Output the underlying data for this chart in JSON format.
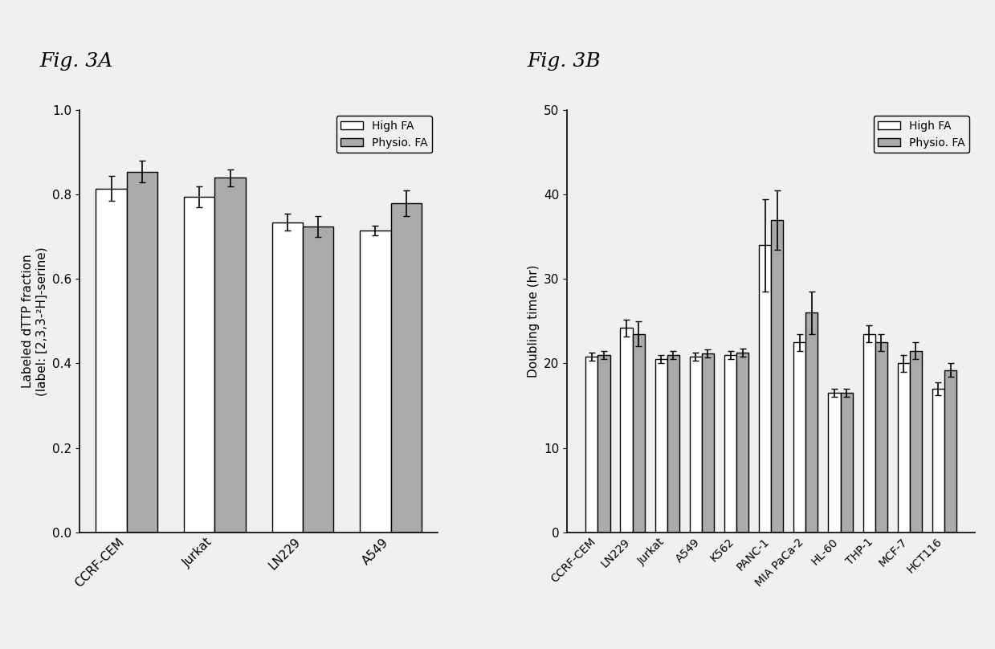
{
  "figA": {
    "title": "Fig. 3A",
    "ylabel_line1": "Labeled dTTP fraction",
    "ylabel_line2": "(label: [2,3,3-²H]-serine)",
    "ylim": [
      0.0,
      1.0
    ],
    "yticks": [
      0.0,
      0.2,
      0.4,
      0.6,
      0.8,
      1.0
    ],
    "categories": [
      "CCRF-CEM",
      "Jurkat",
      "LN229",
      "A549"
    ],
    "high_fa": [
      0.815,
      0.795,
      0.735,
      0.715
    ],
    "physio_fa": [
      0.855,
      0.84,
      0.725,
      0.78
    ],
    "high_fa_err": [
      0.03,
      0.025,
      0.02,
      0.012
    ],
    "physio_fa_err": [
      0.025,
      0.02,
      0.025,
      0.03
    ],
    "bar_width": 0.35,
    "high_fa_color": "#ffffff",
    "physio_fa_color": "#aaaaaa",
    "bar_edgecolor": "#000000",
    "legend_labels": [
      "High FA",
      "Physio. FA"
    ]
  },
  "figB": {
    "title": "Fig. 3B",
    "ylabel": "Doubling time (hr)",
    "ylim": [
      0,
      50
    ],
    "yticks": [
      0,
      10,
      20,
      30,
      40,
      50
    ],
    "categories": [
      "CCRF-CEM",
      "LN229",
      "Jurkat",
      "A549",
      "K562",
      "PANC-1",
      "MIA PaCa-2",
      "HL-60",
      "THP-1",
      "MCF-7",
      "HCT116"
    ],
    "high_fa": [
      20.8,
      24.2,
      20.5,
      20.8,
      21.0,
      34.0,
      22.5,
      16.5,
      23.5,
      20.0,
      17.0
    ],
    "physio_fa": [
      21.0,
      23.5,
      21.0,
      21.2,
      21.3,
      37.0,
      26.0,
      16.5,
      22.5,
      21.5,
      19.2
    ],
    "high_fa_err": [
      0.5,
      1.0,
      0.5,
      0.5,
      0.5,
      5.5,
      1.0,
      0.5,
      1.0,
      1.0,
      0.8
    ],
    "physio_fa_err": [
      0.5,
      1.5,
      0.5,
      0.5,
      0.5,
      3.5,
      2.5,
      0.5,
      1.0,
      1.0,
      0.8
    ],
    "bar_width": 0.35,
    "high_fa_color": "#ffffff",
    "physio_fa_color": "#aaaaaa",
    "bar_edgecolor": "#000000",
    "legend_labels": [
      "High FA",
      "Physio. FA"
    ]
  },
  "fig_width": 12.39,
  "fig_height": 8.08,
  "fig_dpi": 100,
  "background_color": "#f0f0f0"
}
